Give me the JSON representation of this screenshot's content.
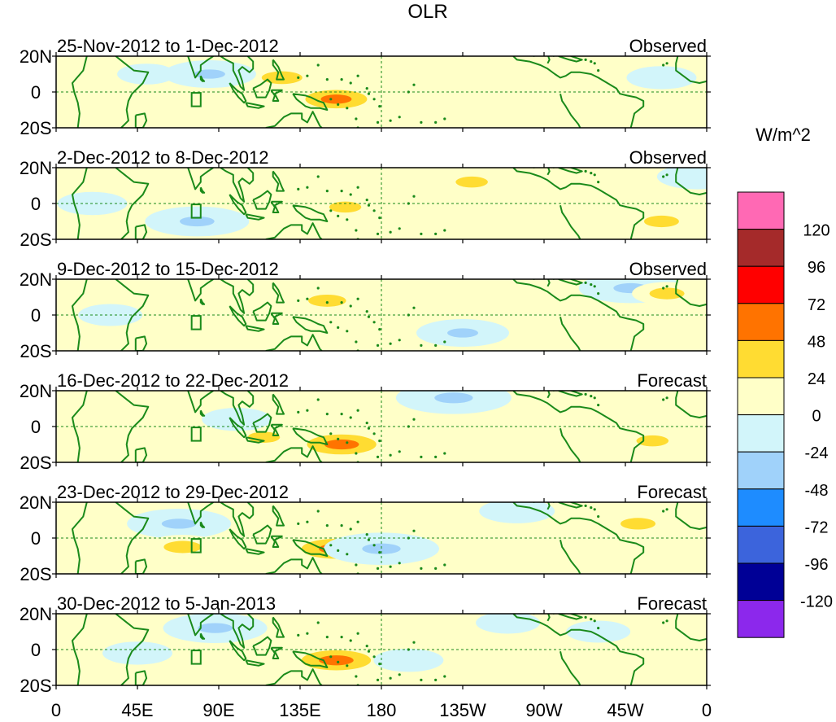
{
  "chart_data": {
    "type": "heatmap",
    "title": "OLR",
    "units": "W/m^2",
    "x_tick_labels": [
      "0",
      "45E",
      "90E",
      "135E",
      "180",
      "135W",
      "90W",
      "45W",
      "0"
    ],
    "x_ticks_lon_east": [
      0,
      45,
      90,
      135,
      180,
      225,
      270,
      315,
      360
    ],
    "y_tick_labels": [
      "20N",
      "0",
      "20S"
    ],
    "y_ticks_lat": [
      20,
      0,
      -20
    ],
    "xlim": [
      0,
      360
    ],
    "ylim": [
      -20,
      20
    ],
    "reference_lines": {
      "equator_lat": 0,
      "dateline_lon": 180,
      "style": "dashed"
    },
    "colorbar": {
      "levels": [
        "120",
        "96",
        "72",
        "48",
        "24",
        "0",
        "-24",
        "-48",
        "-72",
        "-96",
        "-120"
      ],
      "colors": [
        "#ff69b4",
        "#a52a2a",
        "#ff0000",
        "#ff7300",
        "#ffdc32",
        "#ffffc8",
        "#d2f5fa",
        "#a0d2fa",
        "#1e8cff",
        "#3c64dc",
        "#000096",
        "#8c28ec"
      ]
    },
    "panels": [
      {
        "period": "25-Nov-2012 to 1-Dec-2012",
        "kind": "Observed",
        "anomalies": [
          {
            "lon": 125,
            "lat": 8,
            "value": 40
          },
          {
            "lon": 155,
            "lat": -4,
            "value": 50
          },
          {
            "lon": 85,
            "lat": 10,
            "value": -50
          },
          {
            "lon": 50,
            "lat": 10,
            "value": -20
          },
          {
            "lon": 240,
            "lat": 0,
            "value": 20
          },
          {
            "lon": 335,
            "lat": 8,
            "value": -30
          }
        ]
      },
      {
        "period": "2-Dec-2012 to 8-Dec-2012",
        "kind": "Observed",
        "anomalies": [
          {
            "lon": 78,
            "lat": -10,
            "value": -60
          },
          {
            "lon": 160,
            "lat": -2,
            "value": 25
          },
          {
            "lon": 20,
            "lat": 0,
            "value": -30
          },
          {
            "lon": 230,
            "lat": 12,
            "value": 25
          },
          {
            "lon": 335,
            "lat": -10,
            "value": 30
          },
          {
            "lon": 355,
            "lat": 15,
            "value": -40
          }
        ]
      },
      {
        "period": "9-Dec-2012 to 15-Dec-2012",
        "kind": "Observed",
        "anomalies": [
          {
            "lon": 150,
            "lat": 8,
            "value": 35
          },
          {
            "lon": 225,
            "lat": -10,
            "value": -50
          },
          {
            "lon": 318,
            "lat": 15,
            "value": -60
          },
          {
            "lon": 30,
            "lat": 0,
            "value": -25
          },
          {
            "lon": 338,
            "lat": 12,
            "value": 30
          }
        ]
      },
      {
        "period": "16-Dec-2012 to 22-Dec-2012",
        "kind": "Forecast",
        "anomalies": [
          {
            "lon": 158,
            "lat": -10,
            "value": 60
          },
          {
            "lon": 220,
            "lat": 16,
            "value": -70
          },
          {
            "lon": 115,
            "lat": -6,
            "value": 25
          },
          {
            "lon": 100,
            "lat": 4,
            "value": -30
          },
          {
            "lon": 330,
            "lat": -8,
            "value": 25
          }
        ]
      },
      {
        "period": "23-Dec-2012 to 29-Dec-2012",
        "kind": "Forecast",
        "anomalies": [
          {
            "lon": 68,
            "lat": 8,
            "value": -60
          },
          {
            "lon": 155,
            "lat": -6,
            "value": 60
          },
          {
            "lon": 180,
            "lat": -6,
            "value": -70
          },
          {
            "lon": 70,
            "lat": -5,
            "value": 35
          },
          {
            "lon": 255,
            "lat": 15,
            "value": -35
          },
          {
            "lon": 322,
            "lat": 8,
            "value": 30
          }
        ]
      },
      {
        "period": "30-Dec-2012 to 5-Jan-2013",
        "kind": "Forecast",
        "anomalies": [
          {
            "lon": 88,
            "lat": 12,
            "value": -60
          },
          {
            "lon": 155,
            "lat": -6,
            "value": 60
          },
          {
            "lon": 45,
            "lat": -2,
            "value": -30
          },
          {
            "lon": 195,
            "lat": -6,
            "value": -30
          },
          {
            "lon": 250,
            "lat": 15,
            "value": -25
          },
          {
            "lon": 300,
            "lat": 10,
            "value": -25
          }
        ]
      }
    ]
  }
}
